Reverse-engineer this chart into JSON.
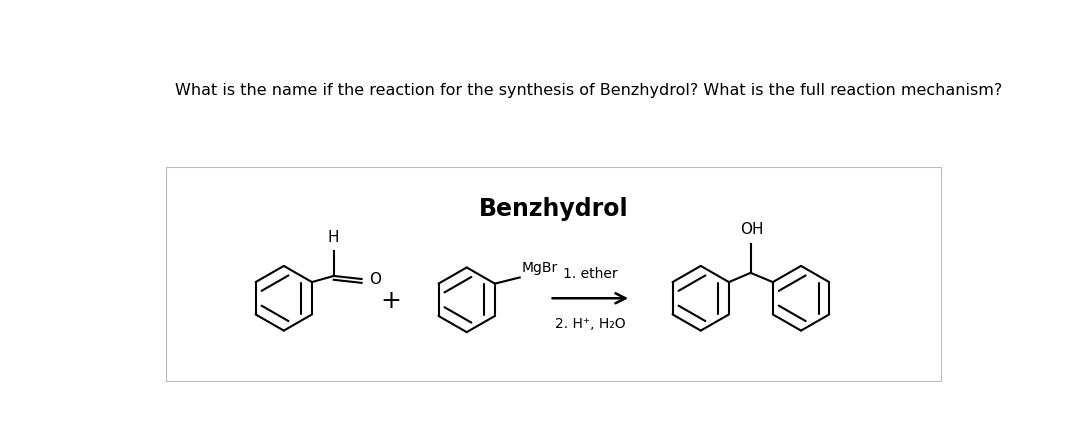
{
  "question_text": "What is the name if the reaction for the synthesis of Benzhydrol? What is the full reaction mechanism?",
  "title": "Benzhydrol",
  "condition1": "1. ether",
  "condition2": "2. H⁺, H₂O",
  "mgbr_label": "MgBr",
  "h_label": "H",
  "o_label": "O",
  "oh_label": "OH",
  "plus_sign": "+",
  "bg_color": "#ffffff",
  "box_border": "#bbbbbb",
  "text_color": "#000000",
  "question_fontsize": 11.5,
  "title_fontsize": 17
}
